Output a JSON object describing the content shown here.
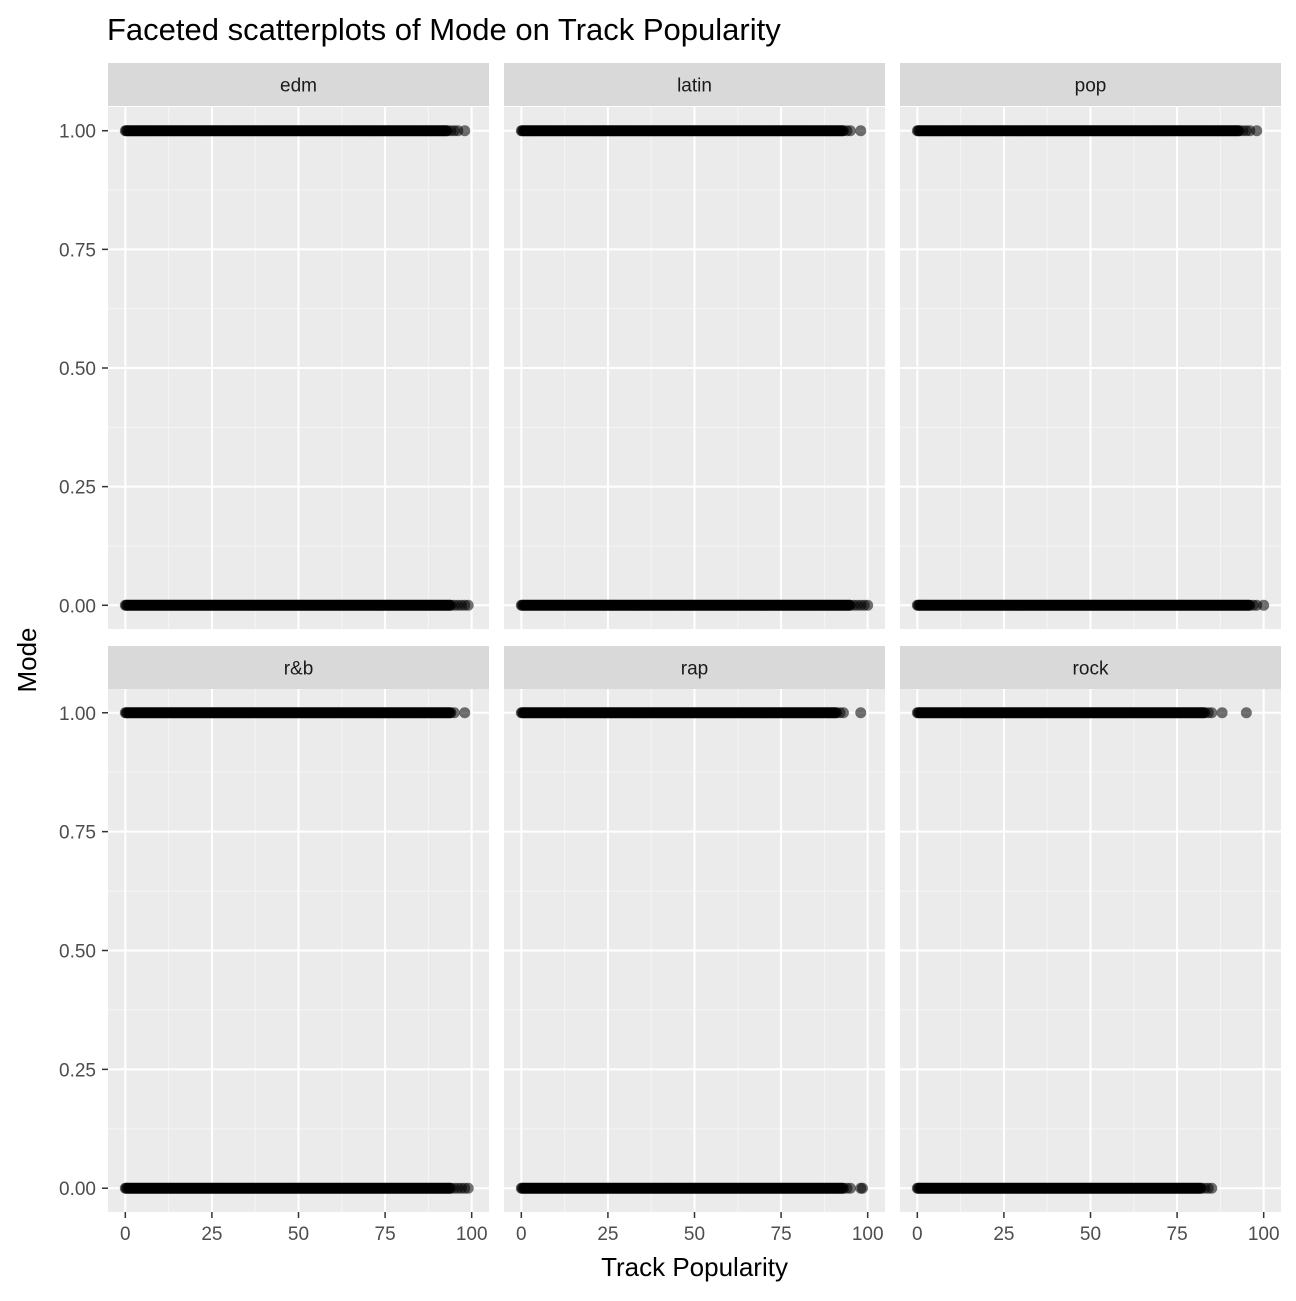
{
  "chart_data": {
    "type": "scatter",
    "title": "Faceted scatterplots of Mode on Track Popularity",
    "xlabel": "Track Popularity",
    "ylabel": "Mode",
    "xlim": [
      -5,
      105
    ],
    "ylim": [
      -0.05,
      1.05
    ],
    "x_ticks": [
      0,
      25,
      50,
      75,
      100
    ],
    "x_tick_labels": [
      "0",
      "25",
      "50",
      "75",
      "100"
    ],
    "y_ticks": [
      0,
      0.25,
      0.5,
      0.75,
      1
    ],
    "y_tick_labels": [
      "0.00",
      "0.25",
      "0.50",
      "0.75",
      "1.00"
    ],
    "grid": true,
    "legend": "none",
    "facets": [
      {
        "name": "edm",
        "series": [
          {
            "y": 1,
            "x_range": [
              0,
              93
            ],
            "outliers_x": [
              94,
              95,
              96,
              98
            ]
          },
          {
            "y": 0,
            "x_range": [
              0,
              94
            ],
            "outliers_x": [
              95,
              96,
              97,
              98,
              99
            ]
          }
        ]
      },
      {
        "name": "latin",
        "series": [
          {
            "y": 1,
            "x_range": [
              0,
              93
            ],
            "outliers_x": [
              94,
              95,
              98
            ]
          },
          {
            "y": 0,
            "x_range": [
              0,
              95
            ],
            "outliers_x": [
              96,
              97,
              98,
              99,
              100
            ]
          }
        ]
      },
      {
        "name": "pop",
        "series": [
          {
            "y": 1,
            "x_range": [
              0,
              93
            ],
            "outliers_x": [
              94,
              95,
              96,
              98
            ]
          },
          {
            "y": 0,
            "x_range": [
              0,
              96
            ],
            "outliers_x": [
              97,
              98,
              100
            ]
          }
        ]
      },
      {
        "name": "r&b",
        "series": [
          {
            "y": 1,
            "x_range": [
              0,
              94
            ],
            "outliers_x": [
              95,
              98
            ]
          },
          {
            "y": 0,
            "x_range": [
              0,
              94
            ],
            "outliers_x": [
              95,
              96,
              97,
              98,
              99
            ]
          }
        ]
      },
      {
        "name": "rap",
        "series": [
          {
            "y": 1,
            "x_range": [
              0,
              91
            ],
            "outliers_x": [
              92,
              93,
              98
            ]
          },
          {
            "y": 0,
            "x_range": [
              0,
              93
            ],
            "outliers_x": [
              94,
              95,
              98,
              98.5
            ]
          }
        ]
      },
      {
        "name": "rock",
        "series": [
          {
            "y": 1,
            "x_range": [
              0,
              83
            ],
            "outliers_x": [
              84,
              85,
              88,
              95
            ]
          },
          {
            "y": 0,
            "x_range": [
              0,
              82
            ],
            "outliers_x": [
              83,
              84,
              85
            ]
          }
        ]
      }
    ]
  }
}
